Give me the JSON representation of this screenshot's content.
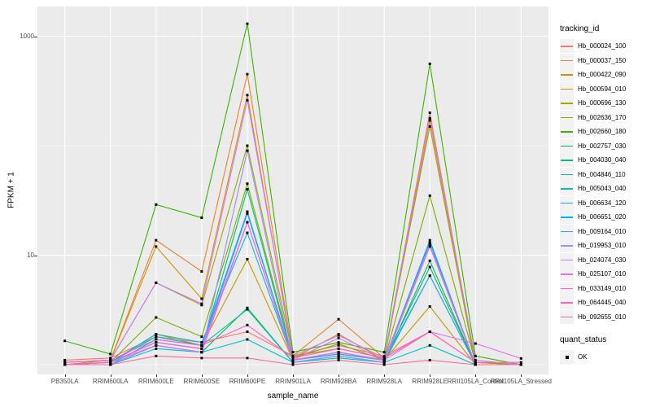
{
  "chart_data": {
    "type": "line",
    "xlabel": "sample_name",
    "ylabel": "FPKM + 1",
    "y_scale": "log10",
    "legend_position": "right",
    "grid": true,
    "panel_background": "#EBEBEB",
    "gridline_color": "#FFFFFF",
    "point_color": "#000000",
    "y_major_ticks": {
      "values": [
        10,
        1000
      ],
      "labels": [
        "10",
        "1000"
      ]
    },
    "y_minor_gridlines": [
      1,
      100
    ],
    "ylim_log": [
      0.96,
      1500
    ],
    "categories": [
      "PB350LA",
      "RRIM600LA",
      "RRIM600LE",
      "RRIM600SE",
      "RRIM600PE",
      "RRIM901LA",
      "RRIM928BA",
      "RRIM928LA",
      "RRIM928LE",
      "RRII105LA_Control",
      "RRII105LA_Stressed"
    ],
    "series": [
      {
        "name": "Hb_000024_100",
        "color": "#F8766D",
        "values": [
          1.1,
          1.15,
          1.8,
          1.6,
          2.0,
          1.2,
          1.5,
          1.2,
          2.0,
          1.05,
          1.0
        ]
      },
      {
        "name": "Hb_000037_150",
        "color": "#EA8331",
        "values": [
          1.05,
          1.1,
          13.7,
          7.1,
          450,
          1.2,
          2.6,
          1.15,
          200,
          1.05,
          1.0
        ]
      },
      {
        "name": "Hb_000422_090",
        "color": "#D89000",
        "values": [
          1.05,
          1.1,
          12.0,
          4.0,
          290,
          1.15,
          1.9,
          1.1,
          170,
          1.05,
          1.0
        ]
      },
      {
        "name": "Hb_000594_010",
        "color": "#C09B00",
        "values": [
          1.0,
          1.05,
          1.9,
          1.5,
          9.2,
          1.1,
          1.3,
          1.1,
          3.4,
          1.0,
          1.0
        ]
      },
      {
        "name": "Hb_000696_130",
        "color": "#A3A500",
        "values": [
          1.0,
          1.1,
          5.6,
          3.5,
          100,
          1.2,
          1.4,
          1.15,
          150,
          1.0,
          1.0
        ]
      },
      {
        "name": "Hb_002636_170",
        "color": "#7CAE00",
        "values": [
          1.0,
          1.05,
          2.7,
          1.8,
          45,
          1.15,
          1.55,
          1.1,
          35,
          1.05,
          1.0
        ]
      },
      {
        "name": "Hb_002660_180",
        "color": "#39B600",
        "values": [
          1.65,
          1.25,
          29,
          22,
          1300,
          1.3,
          1.6,
          1.3,
          560,
          1.2,
          1.0
        ]
      },
      {
        "name": "Hb_002757_030",
        "color": "#00BB4E",
        "values": [
          1.0,
          1.0,
          1.5,
          1.3,
          3.3,
          1.05,
          1.2,
          1.05,
          8.9,
          1.0,
          1.0
        ]
      },
      {
        "name": "Hb_004030_040",
        "color": "#00BF7D",
        "values": [
          1.0,
          1.05,
          1.6,
          1.4,
          40,
          1.1,
          1.25,
          1.1,
          7.8,
          1.0,
          1.0
        ]
      },
      {
        "name": "Hb_004846_110",
        "color": "#00C1A3",
        "values": [
          1.0,
          1.0,
          1.7,
          1.5,
          3.2,
          1.05,
          1.2,
          1.05,
          6.5,
          1.0,
          1.0
        ]
      },
      {
        "name": "Hb_005043_040",
        "color": "#00BFC4",
        "values": [
          1.0,
          1.0,
          1.4,
          1.3,
          1.7,
          1.05,
          1.15,
          1.05,
          1.5,
          1.0,
          1.0
        ]
      },
      {
        "name": "Hb_006634_120",
        "color": "#00BAE0",
        "values": [
          1.0,
          1.05,
          1.9,
          1.6,
          16,
          1.1,
          1.3,
          1.1,
          13.7,
          1.0,
          1.0
        ]
      },
      {
        "name": "Hb_006651_020",
        "color": "#00B0F6",
        "values": [
          1.0,
          1.05,
          1.8,
          1.5,
          25,
          1.1,
          1.3,
          1.1,
          13.0,
          1.0,
          1.0
        ]
      },
      {
        "name": "Hb_009164_010",
        "color": "#35A2FF",
        "values": [
          1.0,
          1.05,
          1.6,
          1.4,
          24,
          1.1,
          1.25,
          1.1,
          6.5,
          1.0,
          1.0
        ]
      },
      {
        "name": "Hb_019953_010",
        "color": "#9590FF",
        "values": [
          1.0,
          1.0,
          1.5,
          1.3,
          90,
          1.05,
          1.2,
          1.05,
          12.0,
          1.0,
          1.0
        ]
      },
      {
        "name": "Hb_024074_030",
        "color": "#C77CFF",
        "values": [
          1.05,
          1.1,
          5.6,
          3.6,
          260,
          1.2,
          1.85,
          1.15,
          178,
          1.1,
          1.0
        ]
      },
      {
        "name": "Hb_025107_010",
        "color": "#E76BF3",
        "values": [
          1.0,
          1.05,
          1.5,
          1.3,
          20,
          1.1,
          1.75,
          1.1,
          2.0,
          1.56,
          1.14
        ]
      },
      {
        "name": "Hb_033149_010",
        "color": "#FA62DB",
        "values": [
          1.0,
          1.05,
          1.6,
          1.4,
          20,
          1.1,
          1.3,
          1.1,
          12.5,
          1.0,
          1.0
        ]
      },
      {
        "name": "Hb_064445_040",
        "color": "#FF62BC",
        "values": [
          1.05,
          1.1,
          1.7,
          1.5,
          2.3,
          1.15,
          1.4,
          1.15,
          2.0,
          1.05,
          1.05
        ]
      },
      {
        "name": "Hb_092655_010",
        "color": "#FF6A98",
        "values": [
          1.0,
          1.0,
          1.2,
          1.15,
          1.15,
          1.0,
          1.1,
          1.0,
          1.1,
          1.0,
          1.0
        ]
      }
    ]
  },
  "legend": {
    "tracking_title": "tracking_id",
    "quant_title": "quant_status",
    "quant_items": [
      {
        "label": "OK"
      }
    ]
  }
}
